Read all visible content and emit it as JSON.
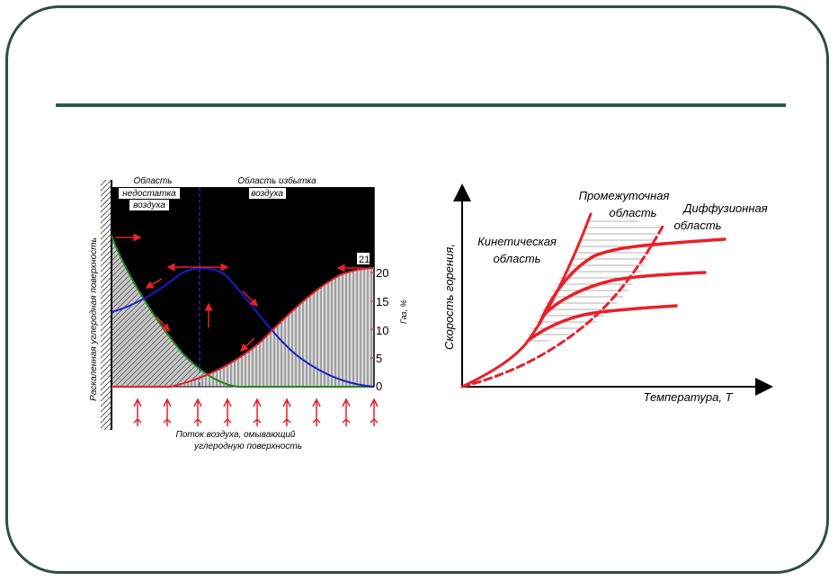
{
  "left_figure": {
    "region_lack_line1": "Область",
    "region_lack_line2": "недостатка",
    "region_lack_line3": "воздуха",
    "region_excess_line1": "Область избытка",
    "region_excess_line2": "воздуха",
    "surface_label": "Раскаленная углеродная поверхность",
    "gas_axis_label": "Газ, %",
    "gas_ticks": [
      "0",
      "5",
      "10",
      "15",
      "20",
      "21"
    ],
    "flow_label_line1": "Поток воздуха, омывающий",
    "flow_label_line2": "углеродную поверхность",
    "colors": {
      "oxygen": "#e8202a",
      "co": "#1a1ad0",
      "co2": "#1e8a1e",
      "background": "#000000"
    }
  },
  "right_figure": {
    "y_label": "Скорость горения,",
    "x_label": "Температура, T",
    "kinetic_line1": "Кинетическая",
    "kinetic_line2": "область",
    "intermediate_line1": "Промежуточная",
    "intermediate_line2": "область",
    "diffusion_line1": "Диффузионная",
    "diffusion_line2": "область",
    "curve_color": "#e8202a"
  }
}
